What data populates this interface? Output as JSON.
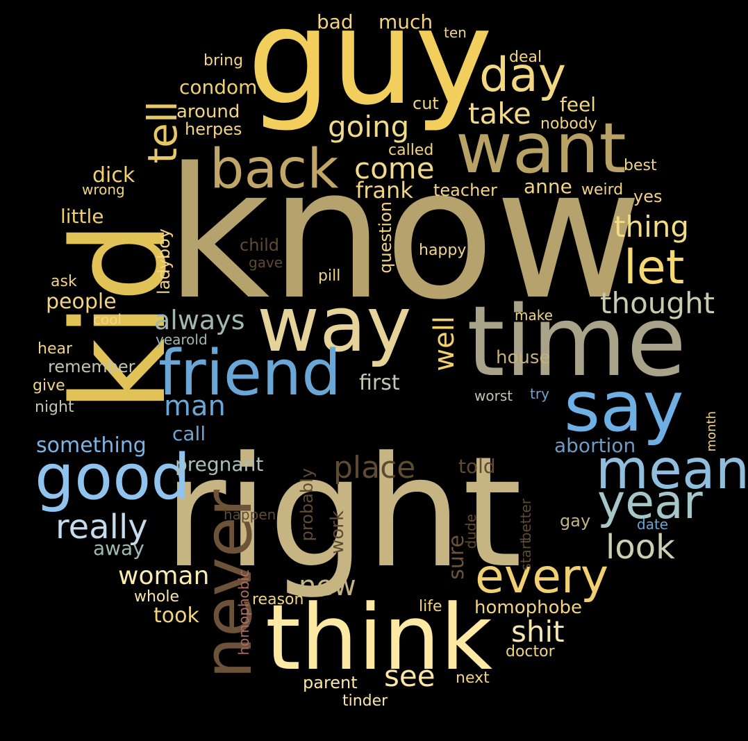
{
  "background": "#000000",
  "palette": {
    "gold": "#f0c85a",
    "tan": "#c2b280",
    "khaki": "#b5a06a",
    "sage": "#a8a58a",
    "cream": "#fce9a8",
    "blue": "#6aaee0",
    "lightblue": "#9ccbe8",
    "brown": "#6b5238",
    "dullbrown": "#8a6a4a",
    "rose": "#b06a62",
    "grayblue": "#9fb8b0"
  },
  "words": [
    {
      "text": "know",
      "color": "#b5a26c"
    },
    {
      "text": "right",
      "color": "#c6b482"
    },
    {
      "text": "guy",
      "color": "#f2cf5c"
    },
    {
      "text": "time",
      "color": "#a9a38a"
    },
    {
      "text": "kid",
      "color": "#e0c256"
    },
    {
      "text": "think",
      "color": "#fde8a4"
    },
    {
      "text": "want",
      "color": "#b9a265"
    },
    {
      "text": "way",
      "color": "#e6d39a"
    },
    {
      "text": "say",
      "color": "#6fb0e4"
    },
    {
      "text": "friend",
      "color": "#6aa6d6"
    },
    {
      "text": "good",
      "color": "#90c4ee"
    },
    {
      "text": "never",
      "color": "#6b5238"
    },
    {
      "text": "back",
      "color": "#c2a668"
    },
    {
      "text": "mean",
      "color": "#8fbedf"
    },
    {
      "text": "every",
      "color": "#f0d070"
    },
    {
      "text": "day",
      "color": "#f2d883"
    },
    {
      "text": "let",
      "color": "#f6da70"
    },
    {
      "text": "year",
      "color": "#a5c7c9"
    },
    {
      "text": "tell",
      "color": "#e8c866"
    },
    {
      "text": "thought",
      "color": "#c9cbb0"
    },
    {
      "text": "look",
      "color": "#cccfb2"
    },
    {
      "text": "thing",
      "color": "#f2dc88"
    },
    {
      "text": "really",
      "color": "#c4dcee"
    },
    {
      "text": "place",
      "color": "#5f4a32"
    },
    {
      "text": "always",
      "color": "#9fb8b2"
    },
    {
      "text": "going",
      "color": "#f2da8c"
    },
    {
      "text": "take",
      "color": "#f2da8c"
    },
    {
      "text": "come",
      "color": "#f2da8c"
    },
    {
      "text": "shit",
      "color": "#f5e6b0"
    },
    {
      "text": "man",
      "color": "#6aa6d6"
    },
    {
      "text": "well",
      "color": "#f2d070"
    },
    {
      "text": "woman",
      "color": "#fcebb0"
    },
    {
      "text": "new",
      "color": "#c4b480"
    },
    {
      "text": "see",
      "color": "#fbe6a6"
    },
    {
      "text": "people",
      "color": "#f2d482"
    },
    {
      "text": "frank",
      "color": "#f2d482"
    },
    {
      "text": "abortion",
      "color": "#6f9bc2"
    },
    {
      "text": "pregnant",
      "color": "#a9c0b8"
    },
    {
      "text": "something",
      "color": "#7ab4e6"
    },
    {
      "text": "sure",
      "color": "#6b5238"
    },
    {
      "text": "told",
      "color": "#5f4a32"
    },
    {
      "text": "first",
      "color": "#c8c6b2"
    },
    {
      "text": "condom",
      "color": "#f0d070"
    },
    {
      "text": "little",
      "color": "#f2d070"
    },
    {
      "text": "dick",
      "color": "#f2d070"
    },
    {
      "text": "anne",
      "color": "#f2d482"
    },
    {
      "text": "feel",
      "color": "#f2d482"
    },
    {
      "text": "homophobe",
      "color": "#f2d482"
    },
    {
      "text": "call",
      "color": "#6aa6d6"
    },
    {
      "text": "away",
      "color": "#9fb8b2"
    },
    {
      "text": "took",
      "color": "#f2d482"
    },
    {
      "text": "work",
      "color": "#5f4a32"
    },
    {
      "text": "house",
      "color": "#c4b07a"
    },
    {
      "text": "much",
      "color": "#f2d482"
    },
    {
      "text": "bad",
      "color": "#f2d482"
    },
    {
      "text": "around",
      "color": "#f2d482"
    },
    {
      "text": "herpes",
      "color": "#f2d482"
    },
    {
      "text": "teacher",
      "color": "#f2d482"
    },
    {
      "text": "question",
      "color": "#f2d482"
    },
    {
      "text": "probably",
      "color": "#5f4a32"
    },
    {
      "text": "remember",
      "color": "#c4c4b0"
    },
    {
      "text": "ladyboy",
      "color": "#f2d482"
    },
    {
      "text": "gay",
      "color": "#c4b480"
    },
    {
      "text": "cut",
      "color": "#f2d482"
    },
    {
      "text": "yes",
      "color": "#f2d482"
    },
    {
      "text": "give",
      "color": "#f2d482"
    },
    {
      "text": "whole",
      "color": "#fbe6a6"
    },
    {
      "text": "nobody",
      "color": "#f2d482"
    },
    {
      "text": "weird",
      "color": "#f2d482"
    },
    {
      "text": "happen",
      "color": "#5f4a32"
    },
    {
      "text": "homophobic",
      "color": "#b06a62"
    },
    {
      "text": "doctor",
      "color": "#f2d482"
    },
    {
      "text": "parent",
      "color": "#fbe6a6"
    },
    {
      "text": "reason",
      "color": "#f2d482"
    },
    {
      "text": "better",
      "color": "#5f4a32"
    },
    {
      "text": "start",
      "color": "#5f4a32"
    },
    {
      "text": "hear",
      "color": "#f2d482"
    },
    {
      "text": "cool",
      "color": "#f2d482"
    },
    {
      "text": "night",
      "color": "#c4c4b0"
    },
    {
      "text": "yearold",
      "color": "#9fb8b2"
    },
    {
      "text": "child",
      "color": "#5f4a32"
    },
    {
      "text": "gave",
      "color": "#5f4a32"
    },
    {
      "text": "happy",
      "color": "#f2d482"
    },
    {
      "text": "pill",
      "color": "#f2d482"
    },
    {
      "text": "make",
      "color": "#f2d482"
    },
    {
      "text": "called",
      "color": "#f2d482"
    },
    {
      "text": "best",
      "color": "#f2d482"
    },
    {
      "text": "wrong",
      "color": "#f2d482"
    },
    {
      "text": "bring",
      "color": "#f2d482"
    },
    {
      "text": "deal",
      "color": "#f2d482"
    },
    {
      "text": "ten",
      "color": "#f2d482"
    },
    {
      "text": "ask",
      "color": "#f2d482"
    },
    {
      "text": "worst",
      "color": "#c4c4b0"
    },
    {
      "text": "try",
      "color": "#6aa6d6"
    },
    {
      "text": "month",
      "color": "#f2d482"
    },
    {
      "text": "date",
      "color": "#6aa6d6"
    },
    {
      "text": "dude",
      "color": "#5f4a32"
    },
    {
      "text": "life",
      "color": "#f2d482"
    },
    {
      "text": "next",
      "color": "#f2d482"
    },
    {
      "text": "tinder",
      "color": "#fbe6a6"
    }
  ]
}
